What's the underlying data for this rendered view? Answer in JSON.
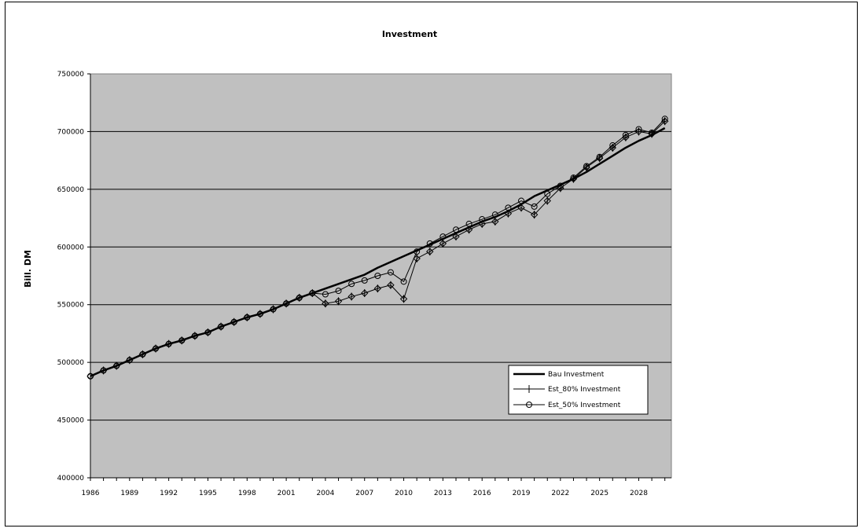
{
  "chart_data": {
    "type": "line",
    "title": "Investment",
    "xlabel": "",
    "ylabel": "Bill. DM",
    "x": [
      1986,
      1987,
      1988,
      1989,
      1990,
      1991,
      1992,
      1993,
      1994,
      1995,
      1996,
      1997,
      1998,
      1999,
      2000,
      2001,
      2002,
      2003,
      2004,
      2005,
      2006,
      2007,
      2008,
      2009,
      2010,
      2011,
      2012,
      2013,
      2014,
      2015,
      2016,
      2017,
      2018,
      2019,
      2020,
      2021,
      2022,
      2023,
      2024,
      2025,
      2026,
      2027,
      2028,
      2029,
      2030
    ],
    "xlim": [
      1986,
      2030.5
    ],
    "x_tick_labels": [
      "1986",
      "1989",
      "1992",
      "1995",
      "1998",
      "2001",
      "2004",
      "2007",
      "2010",
      "2013",
      "2016",
      "2019",
      "2022",
      "2025",
      "2028"
    ],
    "ylim": [
      400000,
      750000
    ],
    "y_tick_labels": [
      "400000",
      "450000",
      "500000",
      "550000",
      "600000",
      "650000",
      "700000",
      "750000"
    ],
    "grid": "horizontal",
    "legend": "bottom-right",
    "series": [
      {
        "name": "Bau Investment",
        "marker": "none",
        "values": [
          488000,
          493000,
          497000,
          502000,
          507000,
          512000,
          516000,
          519000,
          523000,
          526000,
          531000,
          535000,
          539000,
          542000,
          546000,
          551000,
          556000,
          560000,
          564000,
          568000,
          572000,
          576000,
          582000,
          587000,
          592000,
          597000,
          602000,
          607000,
          612000,
          617000,
          622000,
          626000,
          631000,
          637000,
          644000,
          649000,
          654000,
          659000,
          665000,
          672000,
          679000,
          686000,
          692000,
          697000,
          703000
        ]
      },
      {
        "name": "Est_80% Investment",
        "marker": "plus",
        "values": [
          488000,
          493000,
          497000,
          502000,
          507000,
          512000,
          516000,
          519000,
          523000,
          526000,
          531000,
          535000,
          539000,
          542000,
          546000,
          551000,
          556000,
          560000,
          551000,
          553000,
          557000,
          560000,
          564000,
          567000,
          555000,
          590000,
          596000,
          603000,
          609000,
          615000,
          620000,
          622000,
          629000,
          634000,
          628000,
          640000,
          651000,
          659000,
          669000,
          677000,
          686000,
          695000,
          700000,
          698000,
          709000
        ]
      },
      {
        "name": "Est_50% Investment",
        "marker": "circle",
        "values": [
          488000,
          493000,
          497000,
          502000,
          507000,
          512000,
          516000,
          519000,
          523000,
          526000,
          531000,
          535000,
          539000,
          542000,
          546000,
          551000,
          556000,
          560000,
          559000,
          562000,
          568000,
          571000,
          575000,
          578000,
          570000,
          596000,
          603000,
          609000,
          615000,
          620000,
          624000,
          628000,
          634000,
          640000,
          635000,
          646000,
          653000,
          660000,
          670000,
          678000,
          688000,
          697000,
          702000,
          699000,
          711000
        ]
      },
      {
        "name": "",
        "marker": "diamond",
        "values": [
          488000,
          493000,
          497000,
          502000,
          507000,
          512000,
          516000,
          519000,
          523000,
          526000,
          531000,
          535000,
          539000,
          542000,
          546000,
          551000,
          556000,
          560000,
          551000,
          553000,
          557000,
          560000,
          564000,
          567000,
          555000,
          590000,
          596000,
          603000,
          609000,
          615000,
          620000,
          622000,
          629000,
          634000,
          628000,
          640000,
          651000,
          659000,
          669000,
          677000,
          686000,
          695000,
          700000,
          698000,
          709000
        ]
      }
    ]
  }
}
